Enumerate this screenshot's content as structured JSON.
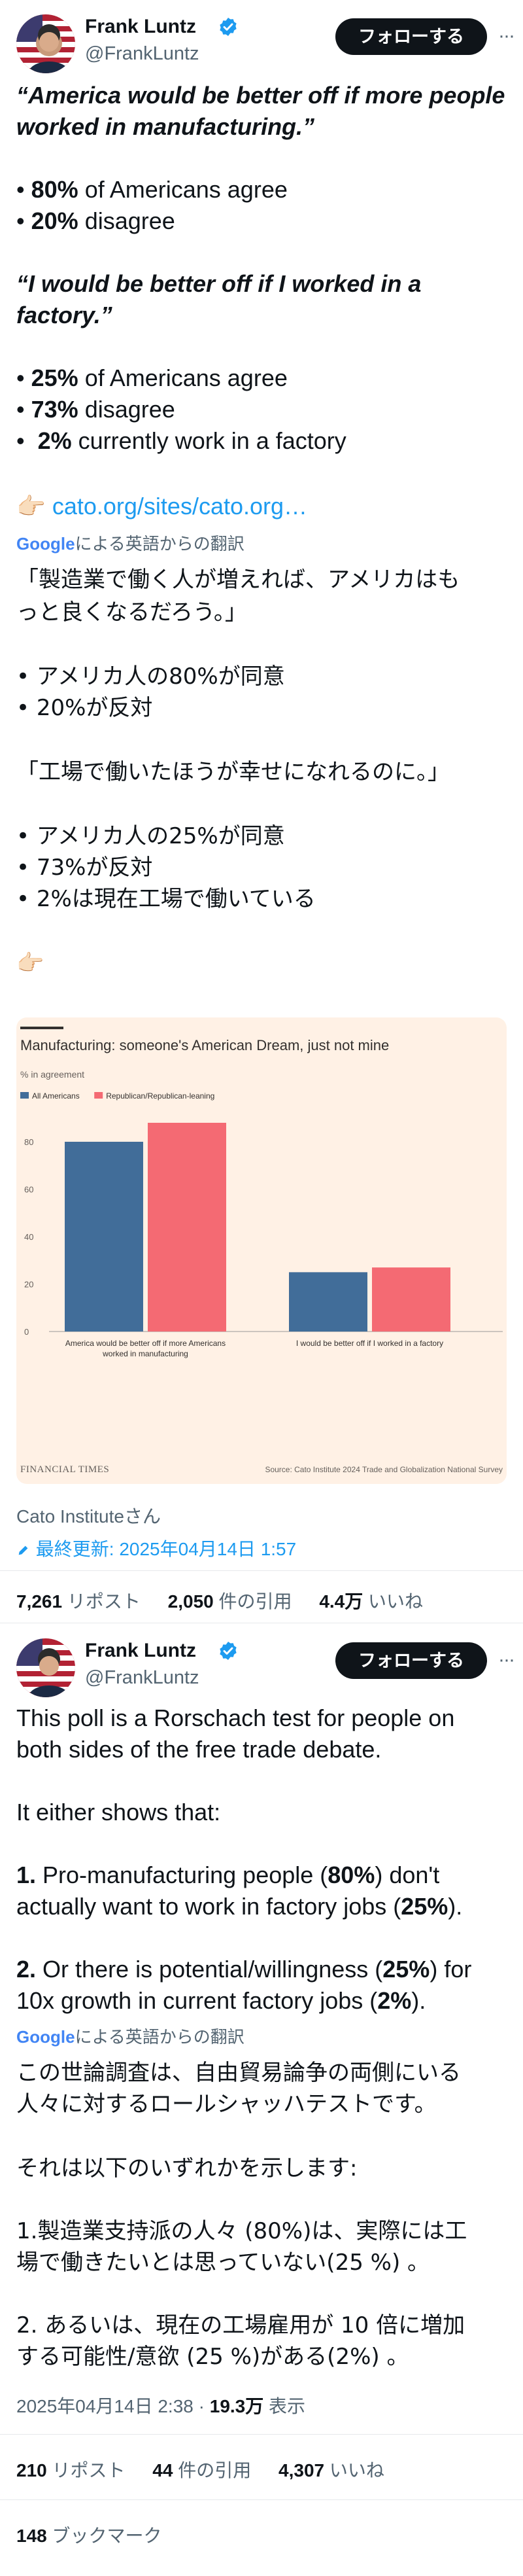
{
  "post1": {
    "author": {
      "name": "Frank Luntz",
      "handle": "@FrankLuntz"
    },
    "follow_label": "フォローする",
    "more_label": "···",
    "lines": {
      "q1a": "“America would be better off if more people",
      "q1b": "worked in manufacturing.”",
      "s1_num": "80%",
      "s1_rest": " of Americans agree",
      "s2_num": "20%",
      "s2_rest": " disagree",
      "q2a": "“I would be better off if I worked in a",
      "q2b": "factory.”",
      "s3_num": "25%",
      "s3_rest": " of Americans agree",
      "s4_num": "73%",
      "s4_rest": " disagree",
      "s5_num": "2%",
      "s5_rest": " currently work in a factory",
      "bullet": "•",
      "point_emoji": "👉🏻",
      "link": "cato.org/sites/cato.org…"
    },
    "translate": {
      "google": "Google",
      "text": "による英語からの翻訳"
    },
    "jp": {
      "l1": "「製造業で働く人が増えれば、アメリカはも",
      "l2": "っと良くなるだろう。」",
      "l3": "• アメリカ人の80%が同意",
      "l4": "• 20%が反対",
      "l5": "「工場で働いたほうが幸せになれるのに。」",
      "l6": "• アメリカ人の25%が同意",
      "l7": "• 73%が反対",
      "l8": "• 2%は現在工場で働いている",
      "l9": "👉🏻"
    },
    "source_name": "Cato Instituteさん",
    "updated": "最終更新: 2025年04月14日 1:57",
    "stats": {
      "reposts_num": "7,261",
      "reposts_label": "リポスト",
      "quotes_num": "2,050",
      "quotes_label": "件の引用",
      "likes_num": "4.4万",
      "likes_label": "いいね"
    }
  },
  "chart": {
    "colors": {
      "all": "#416d99",
      "rep": "#f46a73",
      "axis": "#999999",
      "bg": "#fff1e5"
    }
  },
  "chart_data": {
    "type": "bar",
    "title": "Manufacturing: someone's American Dream, just not mine",
    "subtitle": "% in agreement",
    "categories": [
      "America would be better off if more Americans worked in manufacturing",
      "I would be better off if I worked in a factory"
    ],
    "category_lines": [
      [
        "America would be better off if more Americans",
        "worked in manufacturing"
      ],
      [
        "I would be better off if I worked in a factory"
      ]
    ],
    "series": [
      {
        "name": "All Americans",
        "values": [
          80,
          25
        ]
      },
      {
        "name": "Republican/Republican-leaning",
        "values": [
          88,
          27
        ]
      }
    ],
    "yticks": [
      "0",
      "20",
      "40",
      "60",
      "80"
    ],
    "ylim": [
      0,
      100
    ],
    "legend": "top-left",
    "grid": false,
    "source": "Source: Cato Institute 2024 Trade and Globalization National Survey",
    "brand": "FINANCIAL TIMES"
  },
  "post2": {
    "author": {
      "name": "Frank Luntz",
      "handle": "@FrankLuntz"
    },
    "follow_label": "フォローする",
    "more_label": "···",
    "lines": {
      "l1": "This poll is a Rorschach test for people on",
      "l2": "both sides of the free trade debate.",
      "l3": "It either shows that:",
      "p1_num": "1.",
      "p1a": " Pro-manufacturing people (",
      "p1_pct": "80%",
      "p1b": ") don't",
      "p1c": "actually want to work in factory jobs (",
      "p1_pct2": "25%",
      "p1d": ").",
      "p2_num": "2.",
      "p2a": " Or there is potential/willingness (",
      "p2_pct": "25%",
      "p2b": ") for",
      "p2c": "10x growth in current factory jobs (",
      "p2_pct2": "2%",
      "p2d": ")."
    },
    "translate": {
      "google": "Google",
      "text": "による英語からの翻訳"
    },
    "jp": {
      "l1": "この世論調査は、自由貿易論争の両側にいる",
      "l2": "人々に対するロールシャッハテストです。",
      "l3": "それは以下のいずれかを示します:",
      "l4": "1.製造業支持派の人々 (80%)は、実際には工",
      "l5": "場で働きたいとは思っていない(25 %) 。",
      "l6": "2. あるいは、現在の工場雇用が 10 倍に増加",
      "l7": "する可能性/意欲 (25 %)がある(2%) 。"
    },
    "meta": {
      "date": "2025年04月14日 2:38",
      "dot": " · ",
      "views_num": "19.3万",
      "views_label": " 表示"
    },
    "stats": {
      "reposts_num": "210",
      "reposts_label": "リポスト",
      "quotes_num": "44",
      "quotes_label": "件の引用",
      "likes_num": "4,307",
      "likes_label": "いいね"
    },
    "bookmarks": {
      "num": "148",
      "label": "ブックマーク"
    }
  }
}
